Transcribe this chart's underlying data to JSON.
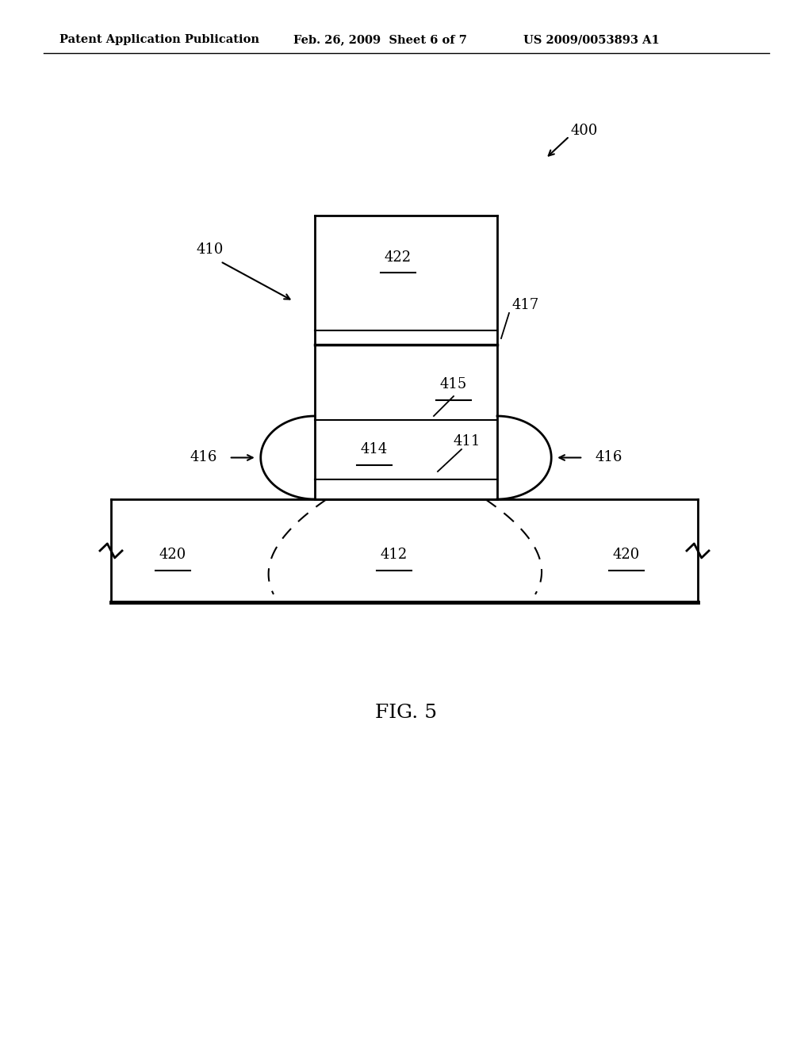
{
  "bg_color": "#ffffff",
  "line_color": "#000000",
  "header_left": "Patent Application Publication",
  "header_mid": "Feb. 26, 2009  Sheet 6 of 7",
  "header_right": "US 2009/0053893 A1",
  "fig_label": "FIG. 5",
  "label_400": "400",
  "label_410": "410",
  "label_411": "411",
  "label_412": "412",
  "label_414": "414",
  "label_415": "415",
  "label_416_left": "416",
  "label_416_right": "416",
  "label_417": "417",
  "label_420_left": "420",
  "label_420_right": "420",
  "label_422": "422",
  "font_size_header": 10.5,
  "font_size_label": 13,
  "font_size_fig": 18
}
